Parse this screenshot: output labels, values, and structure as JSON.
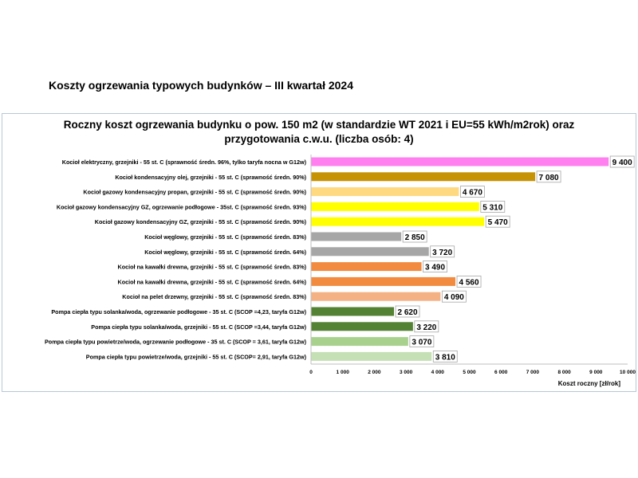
{
  "page": {
    "title": "Koszty ogrzewania typowych budynków – III kwartał 2024"
  },
  "chart_data": {
    "type": "bar",
    "orientation": "horizontal",
    "title_line1": "Roczny koszt ogrzewania budynku  o pow. 150 m2 (w standardzie WT 2021 i EU=55 kWh/m2rok) oraz",
    "title_line2": "przygotowania c.w.u. (liczba osób: 4)",
    "xlabel": "Koszt roczny [zł/rok]",
    "xlim": [
      0,
      10000
    ],
    "xticks": [
      0,
      1000,
      2000,
      3000,
      4000,
      5000,
      6000,
      7000,
      8000,
      9000,
      10000
    ],
    "xtick_labels": [
      "0",
      "1 000",
      "2 000",
      "3 000",
      "4 000",
      "5 000",
      "6 000",
      "7 000",
      "8 000",
      "9 000",
      "10 000"
    ],
    "grid": "vertical-none",
    "categories": [
      "Kocioł  elektryczny,  grzejniki - 55 st. C  (sprawność średn. 96%, tylko taryfa nocna w G12w)",
      "Kocioł  kondensacyjny olej,  grzejniki - 55 st. C   (sprawność średn. 90%)",
      "Kocioł gazowy kondensacyjny propan, grzejniki - 55 st. C   (sprawność średn. 90%)",
      "Kocioł gazowy kondensacyjny GZ, ogrzewanie podłogowe - 35st. C   (sprawność średn. 93%)",
      "Kocioł gazowy kondensacyjny GZ, grzejniki - 55 st. C   (sprawność średn. 90%)",
      "Kocioł węglowy,  grzejniki - 55 st. C   (sprawność średn. 83%)",
      "Kocioł węglowy,  grzejniki - 55 st. C   (sprawność średn. 64%)",
      "Kocioł na kawałki drewna, grzejniki - 55 st. C  (sprawność średn. 83%)",
      "Kocioł na kawałki drewna, grzejniki - 55 st. C  (sprawność średn. 64%)",
      "Kocioł na pelet drzewny, grzejniki - 55 st. C (sprawność średn. 83%)",
      "Pompa ciepła typu solanka/woda, ogrzewanie podłogowe - 35 st. C  (SCOP =4,23, taryfa G12w)",
      "Pompa ciepła typu solanka/woda, grzejniki - 55 st. C (SCOP =3,44, taryfa G12w)",
      "Pompa ciepła typu powietrze/woda, ogrzewanie podłogowe - 35 st. C (SCOP = 3,61, taryfa G12w)",
      "Pompa ciepła typu powietrze/woda, grzejniki - 55 st. C (SCOP= 2,91, taryfa G12w)"
    ],
    "values": [
      9400,
      7080,
      4670,
      5310,
      5470,
      2850,
      3720,
      3490,
      4560,
      4090,
      2620,
      3220,
      3070,
      3810
    ],
    "value_labels": [
      "9 400",
      "7 080",
      "4 670",
      "5 310",
      "5 470",
      "2 850",
      "3 720",
      "3 490",
      "4 560",
      "4 090",
      "2 620",
      "3 220",
      "3 070",
      "3 810"
    ],
    "colors": [
      "#ff7ff0",
      "#c59304",
      "#ffd97f",
      "#ffff00",
      "#ffff00",
      "#a6a6a6",
      "#a6a6a6",
      "#f28a3f",
      "#f28a3f",
      "#f4b183",
      "#548235",
      "#548235",
      "#a9d18e",
      "#c5e0b4"
    ]
  }
}
